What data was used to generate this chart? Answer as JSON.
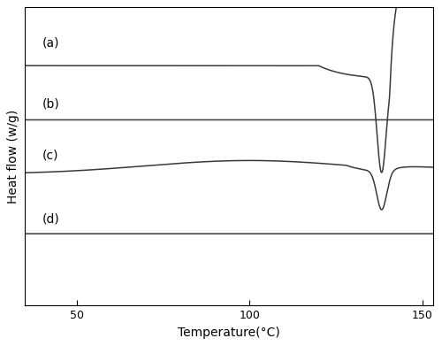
{
  "xlabel": "Temperature(°C)",
  "ylabel": "Heat flow (w/g)",
  "xlim": [
    35,
    153
  ],
  "ylim": [
    -1.15,
    1.05
  ],
  "xticks": [
    50,
    100,
    150
  ],
  "line_color": "#3a3a3a",
  "line_width": 1.1,
  "label_a": "(a)",
  "label_b": "(b)",
  "label_c": "(c)",
  "label_d": "(d)",
  "label_fontsize": 10,
  "axis_fontsize": 10,
  "tick_fontsize": 9,
  "background_color": "#ffffff",
  "curve_offsets": {
    "a": 0.62,
    "b": 0.22,
    "c": -0.18,
    "d": -0.62
  }
}
